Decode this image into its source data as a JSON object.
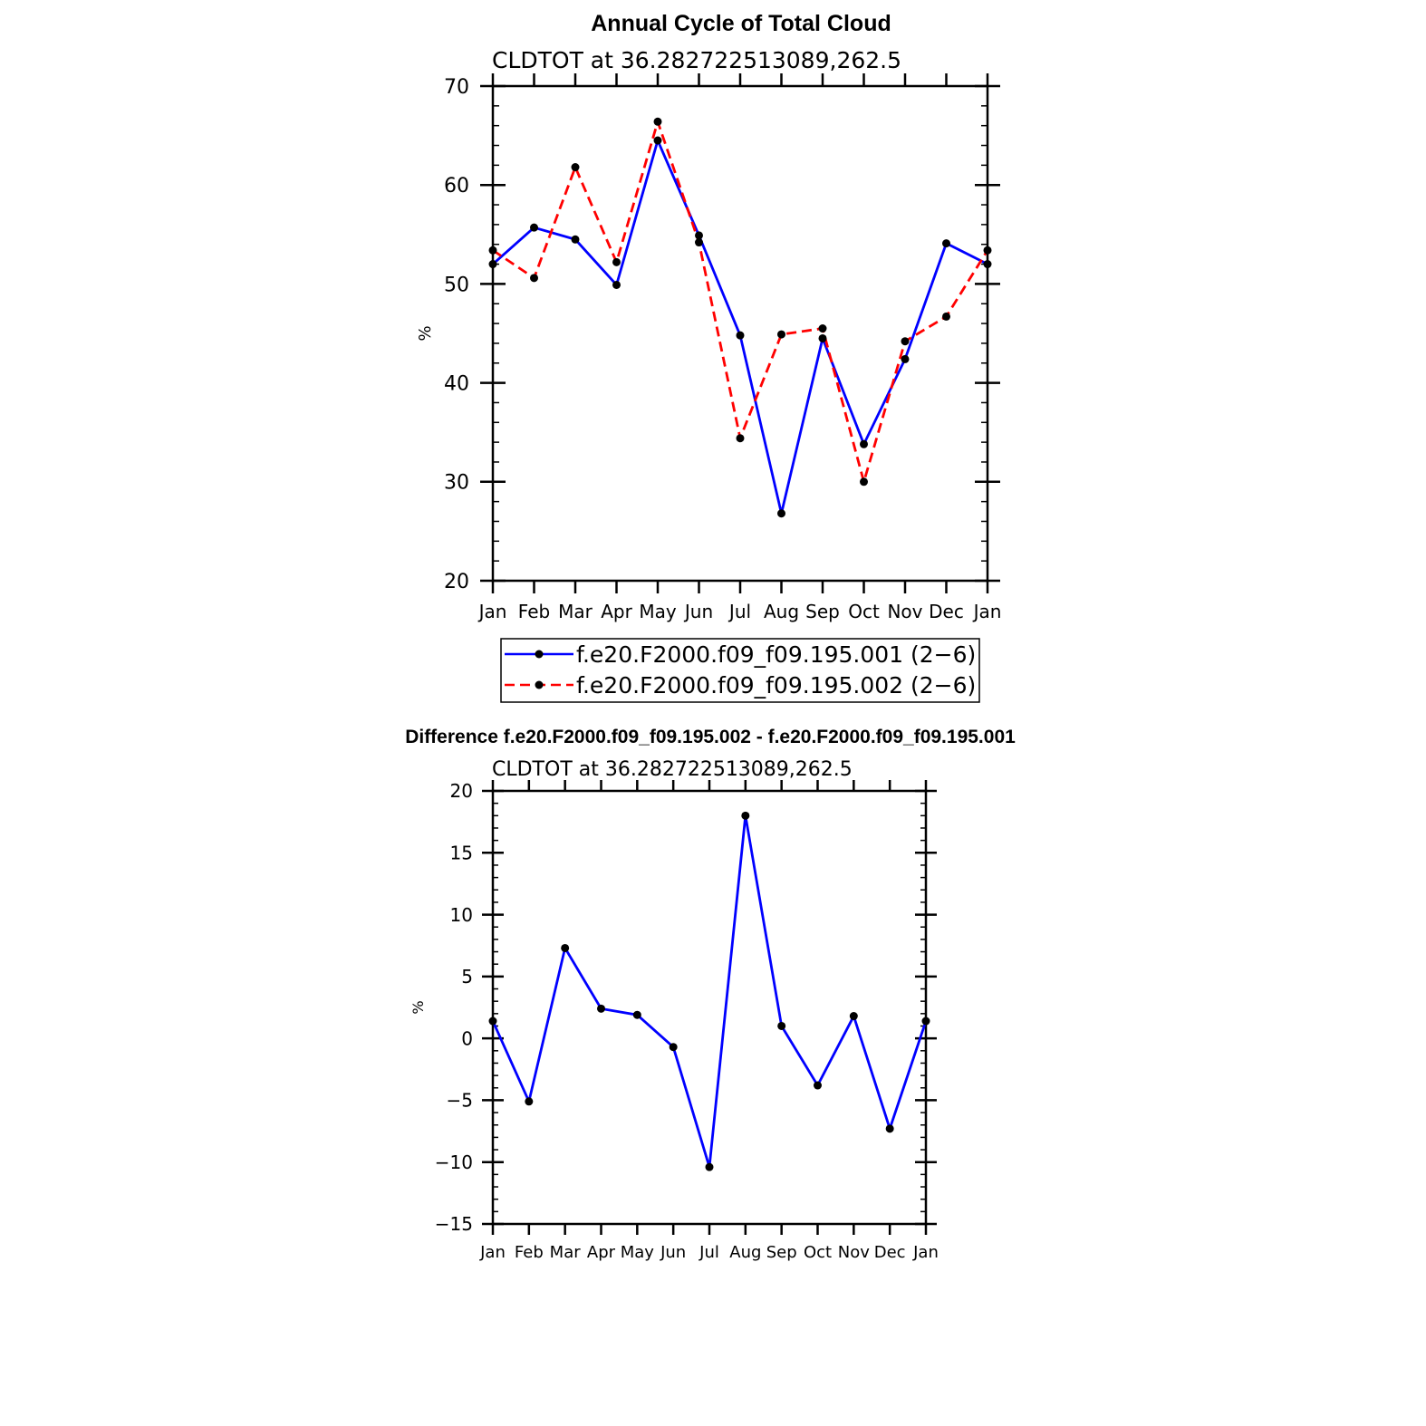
{
  "chart_data": [
    {
      "type": "line",
      "title": "Annual Cycle of Total Cloud",
      "subtitle": "CLDTOT at 36.282722513089,262.5",
      "ylabel": "%",
      "xlabel": "",
      "categories": [
        "Jan",
        "Feb",
        "Mar",
        "Apr",
        "May",
        "Jun",
        "Jul",
        "Aug",
        "Sep",
        "Oct",
        "Nov",
        "Dec",
        "Jan"
      ],
      "ylim": [
        20,
        70
      ],
      "yticks": [
        20,
        30,
        40,
        50,
        60,
        70
      ],
      "series": [
        {
          "name": "f.e20.F2000.f09_f09.195.001 (2−6)",
          "color": "#0000ff",
          "dash": "solid",
          "values": [
            52.0,
            55.7,
            54.5,
            49.9,
            64.5,
            54.9,
            44.8,
            26.8,
            44.5,
            33.8,
            42.4,
            54.1,
            52.0
          ]
        },
        {
          "name": "f.e20.F2000.f09_f09.195.002 (2−6)",
          "color": "#ff0000",
          "dash": "dashed",
          "values": [
            53.4,
            50.6,
            61.8,
            52.2,
            66.4,
            54.2,
            34.4,
            44.9,
            45.5,
            30.0,
            44.2,
            46.7,
            53.4
          ]
        }
      ]
    },
    {
      "type": "line",
      "title": "Difference f.e20.F2000.f09_f09.195.002 - f.e20.F2000.f09_f09.195.001",
      "subtitle": "CLDTOT at 36.282722513089,262.5",
      "ylabel": "%",
      "xlabel": "",
      "categories": [
        "Jan",
        "Feb",
        "Mar",
        "Apr",
        "May",
        "Jun",
        "Jul",
        "Aug",
        "Sep",
        "Oct",
        "Nov",
        "Dec",
        "Jan"
      ],
      "ylim": [
        -15,
        20
      ],
      "yticks": [
        -15,
        -10,
        -5,
        0,
        5,
        10,
        15,
        20
      ],
      "ytick_labels": [
        "−15",
        "−10",
        "−5",
        "0",
        "5",
        "10",
        "15",
        "20"
      ],
      "series": [
        {
          "name": "difference",
          "color": "#0000ff",
          "dash": "solid",
          "values": [
            1.4,
            -5.1,
            7.3,
            2.4,
            1.9,
            -0.7,
            -10.4,
            18.0,
            1.0,
            -3.8,
            1.8,
            -7.3,
            1.4
          ]
        }
      ]
    }
  ]
}
